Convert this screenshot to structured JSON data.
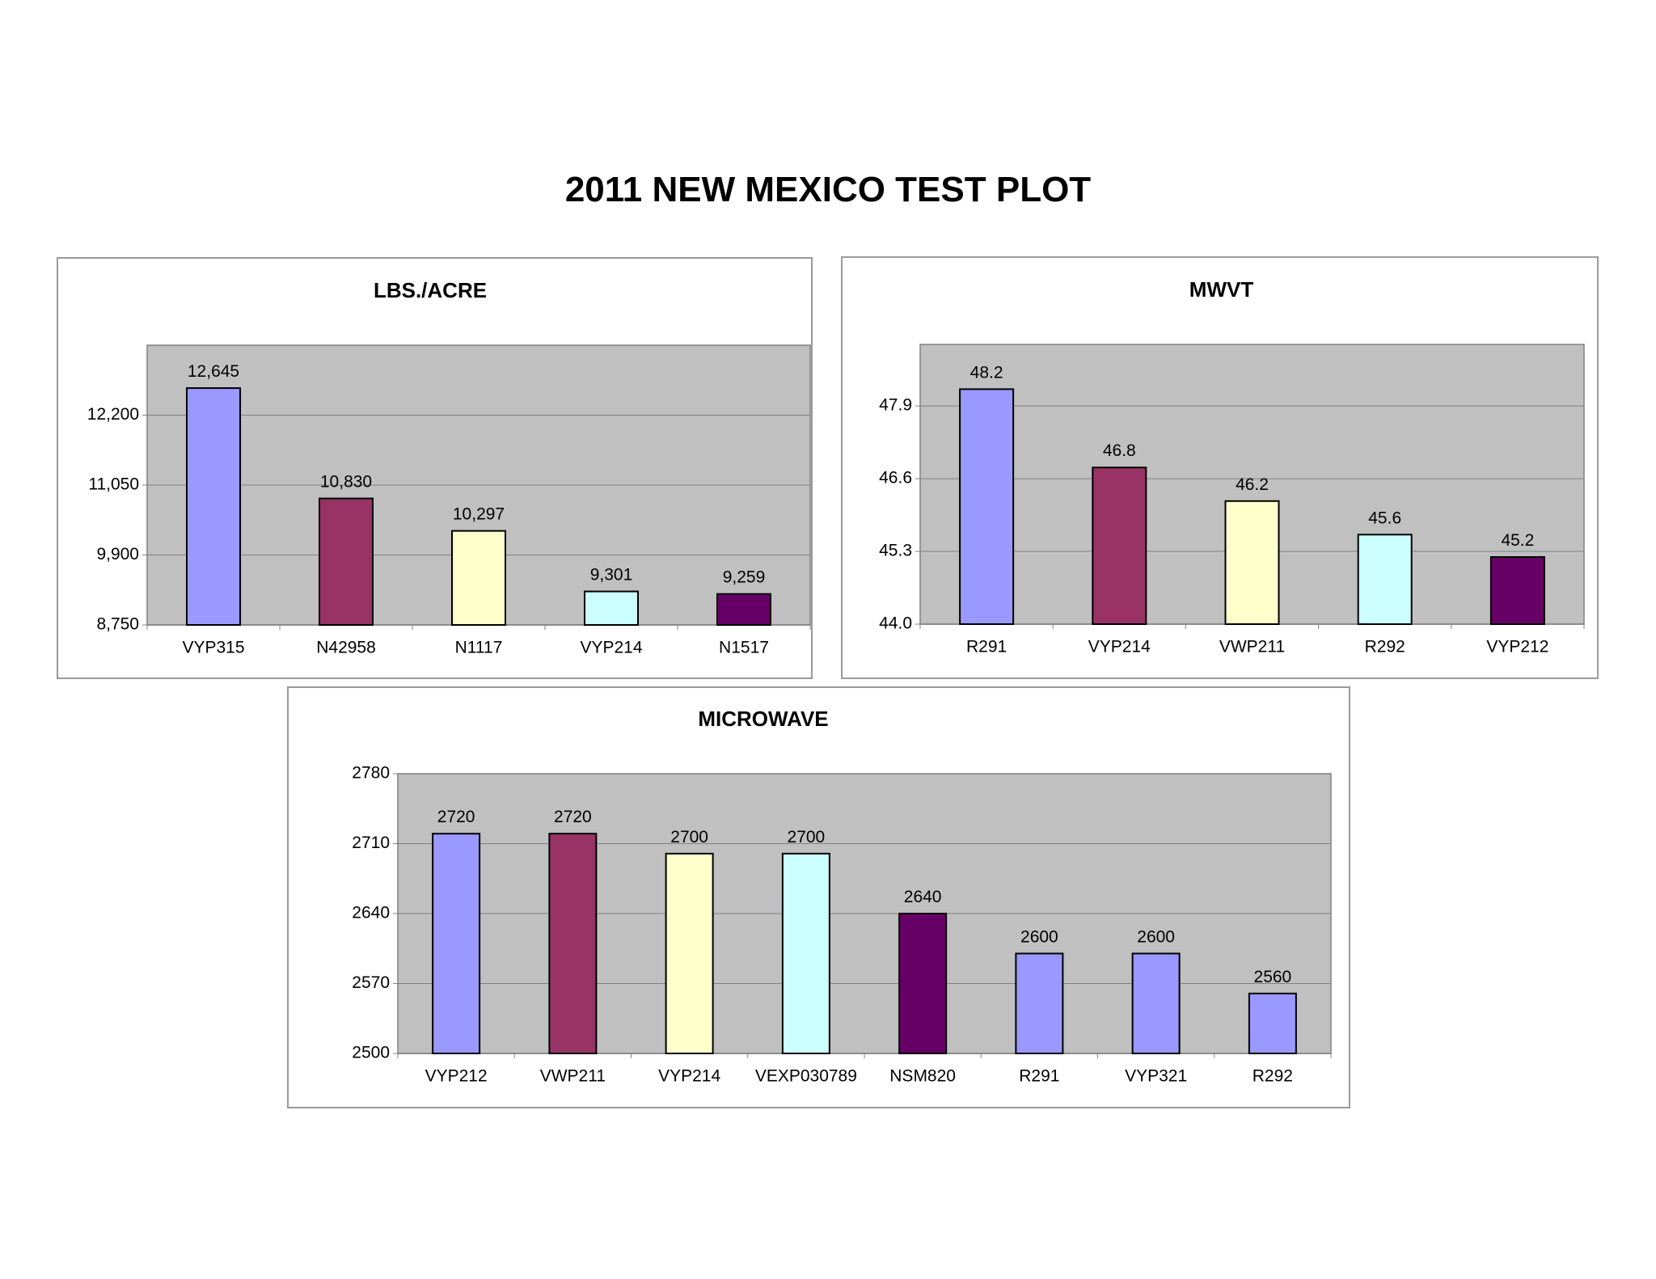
{
  "page": {
    "title": "2011 NEW MEXICO TEST PLOT"
  },
  "colors": {
    "plot_background": "#c0c0c0",
    "gridline": "#808080",
    "bar_outline": "#000000",
    "bar_blue": "#9999ff",
    "bar_plum": "#993366",
    "bar_cream": "#ffffcc",
    "bar_cyan": "#ccffff",
    "bar_purple": "#660066"
  },
  "chart_data": [
    {
      "id": "lbs",
      "type": "bar",
      "title": "LBS./ACRE",
      "xlabel": "",
      "ylabel": "",
      "categories": [
        "VYP315",
        "N42958",
        "N1117",
        "VYP214",
        "N1517"
      ],
      "values": [
        12645,
        10830,
        10297,
        9301,
        9259
      ],
      "value_labels": [
        "12,645",
        "10,830",
        "10,297",
        "9,301",
        "9,259"
      ],
      "bar_colors": [
        "#9999ff",
        "#993366",
        "#ffffcc",
        "#ccffff",
        "#660066"
      ],
      "ylim": [
        8750,
        13350
      ],
      "yticks": [
        8750,
        9900,
        11050,
        12200
      ],
      "ytick_labels": [
        "8,750",
        "9,900",
        "11,050",
        "12,200"
      ],
      "grid": true,
      "legend": "none"
    },
    {
      "id": "mwvt",
      "type": "bar",
      "title": "MWVT",
      "xlabel": "",
      "ylabel": "",
      "categories": [
        "R291",
        "VYP214",
        "VWP211",
        "R292",
        "VYP212"
      ],
      "values": [
        48.2,
        46.8,
        46.2,
        45.6,
        45.2
      ],
      "value_labels": [
        "48.2",
        "46.8",
        "46.2",
        "45.6",
        "45.2"
      ],
      "bar_colors": [
        "#9999ff",
        "#993366",
        "#ffffcc",
        "#ccffff",
        "#660066"
      ],
      "ylim": [
        44.0,
        49.0
      ],
      "yticks": [
        44.0,
        45.3,
        46.6,
        47.9
      ],
      "ytick_labels": [
        "44.0",
        "45.3",
        "46.6",
        "47.9"
      ],
      "grid": true,
      "legend": "none"
    },
    {
      "id": "microwave",
      "type": "bar",
      "title": "MICROWAVE",
      "xlabel": "",
      "ylabel": "",
      "categories": [
        "VYP212",
        "VWP211",
        "VYP214",
        "VEXP030789",
        "NSM820",
        "R291",
        "VYP321",
        "R292"
      ],
      "values": [
        2720,
        2720,
        2700,
        2700,
        2640,
        2600,
        2600,
        2560
      ],
      "value_labels": [
        "2720",
        "2720",
        "2700",
        "2700",
        "2640",
        "2600",
        "2600",
        "2560"
      ],
      "bar_colors": [
        "#9999ff",
        "#993366",
        "#ffffcc",
        "#ccffff",
        "#660066",
        "#9999ff",
        "#9999ff",
        "#9999ff"
      ],
      "ylim": [
        2500,
        2780
      ],
      "yticks": [
        2500,
        2570,
        2640,
        2710,
        2780
      ],
      "ytick_labels": [
        "2500",
        "2570",
        "2640",
        "2710",
        "2780"
      ],
      "grid": true,
      "legend": "none"
    }
  ]
}
